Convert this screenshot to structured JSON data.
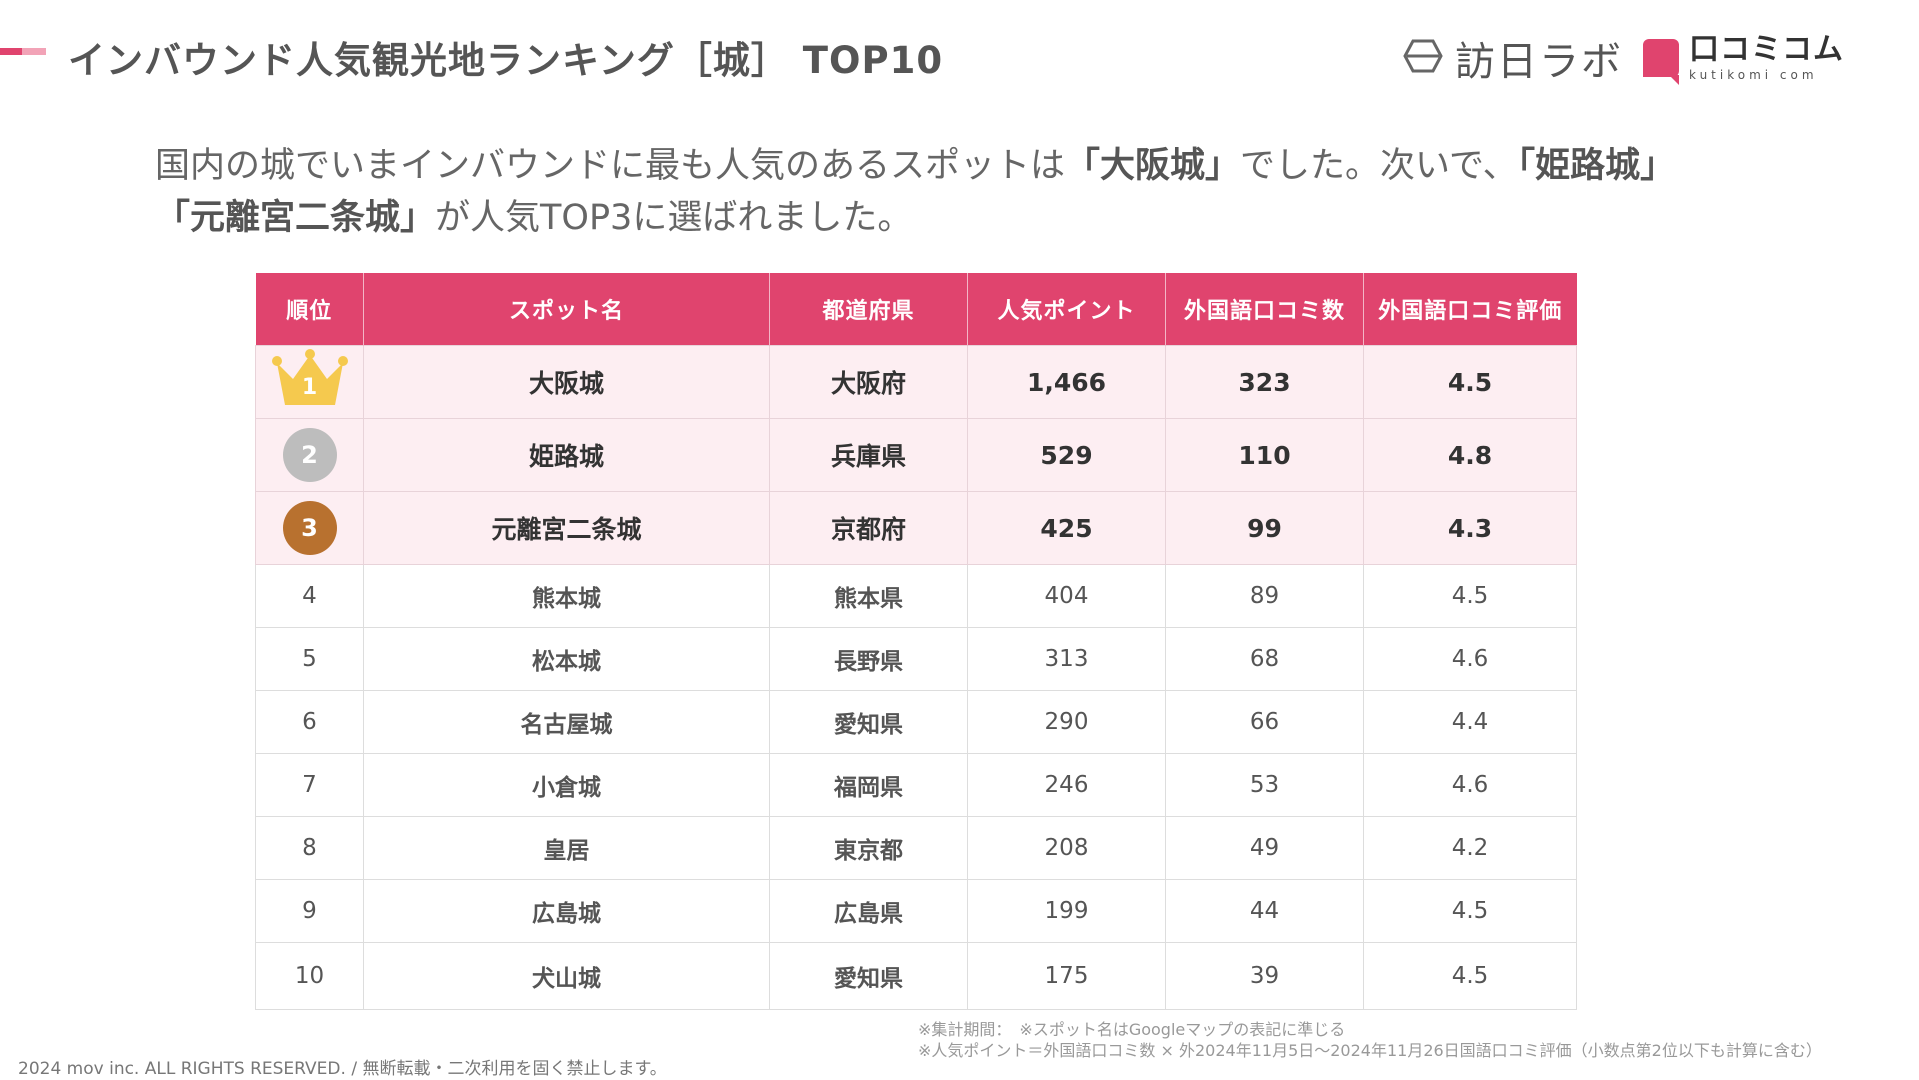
{
  "header": {
    "title": "インバウンド人気観光地ランキング［城］ TOP10",
    "logo1": "訪日ラボ",
    "logo2_main": "口コミコム",
    "logo2_sub": "kutikomi com",
    "accent_color": "#e0446e"
  },
  "intro": {
    "line1_pre": "国内の城でいまインバウンドに最も人気のあるスポットは",
    "line1_b1": "「大阪城」",
    "line1_mid": "でした。次いで、",
    "line1_b2": "「姫路城」",
    "line2_b1": "「元離宮二条城」",
    "line2_post": "が人気TOP3に選ばれました。"
  },
  "table": {
    "headers": [
      "順位",
      "スポット名",
      "都道府県",
      "人気ポイント",
      "外国語口コミ数",
      "外国語口コミ評価"
    ],
    "rows": [
      {
        "rank": "1",
        "name": "大阪城",
        "pref": "大阪府",
        "points": "1,466",
        "reviews": "323",
        "rating": "4.5"
      },
      {
        "rank": "2",
        "name": "姫路城",
        "pref": "兵庫県",
        "points": "529",
        "reviews": "110",
        "rating": "4.8"
      },
      {
        "rank": "3",
        "name": "元離宮二条城",
        "pref": "京都府",
        "points": "425",
        "reviews": "99",
        "rating": "4.3"
      },
      {
        "rank": "4",
        "name": "熊本城",
        "pref": "熊本県",
        "points": "404",
        "reviews": "89",
        "rating": "4.5"
      },
      {
        "rank": "5",
        "name": "松本城",
        "pref": "長野県",
        "points": "313",
        "reviews": "68",
        "rating": "4.6"
      },
      {
        "rank": "6",
        "name": "名古屋城",
        "pref": "愛知県",
        "points": "290",
        "reviews": "66",
        "rating": "4.4"
      },
      {
        "rank": "7",
        "name": "小倉城",
        "pref": "福岡県",
        "points": "246",
        "reviews": "53",
        "rating": "4.6"
      },
      {
        "rank": "8",
        "name": "皇居",
        "pref": "東京都",
        "points": "208",
        "reviews": "49",
        "rating": "4.2"
      },
      {
        "rank": "9",
        "name": "広島城",
        "pref": "広島県",
        "points": "199",
        "reviews": "44",
        "rating": "4.5"
      },
      {
        "rank": "10",
        "name": "犬山城",
        "pref": "愛知県",
        "points": "175",
        "reviews": "39",
        "rating": "4.5"
      }
    ]
  },
  "notes": {
    "line1": "※集計期間：　※スポット名はGoogleマップの表記に準じる",
    "line2": "※人気ポイント＝外国語口コミ数 × 外2024年11月5日〜2024年11月26日国語口コミ評価（小数点第2位以下も計算に含む）"
  },
  "footer": {
    "copyright": "2024 mov inc. ALL RIGHTS RESERVED. / 無断転載・二次利用を固く禁止します。"
  }
}
